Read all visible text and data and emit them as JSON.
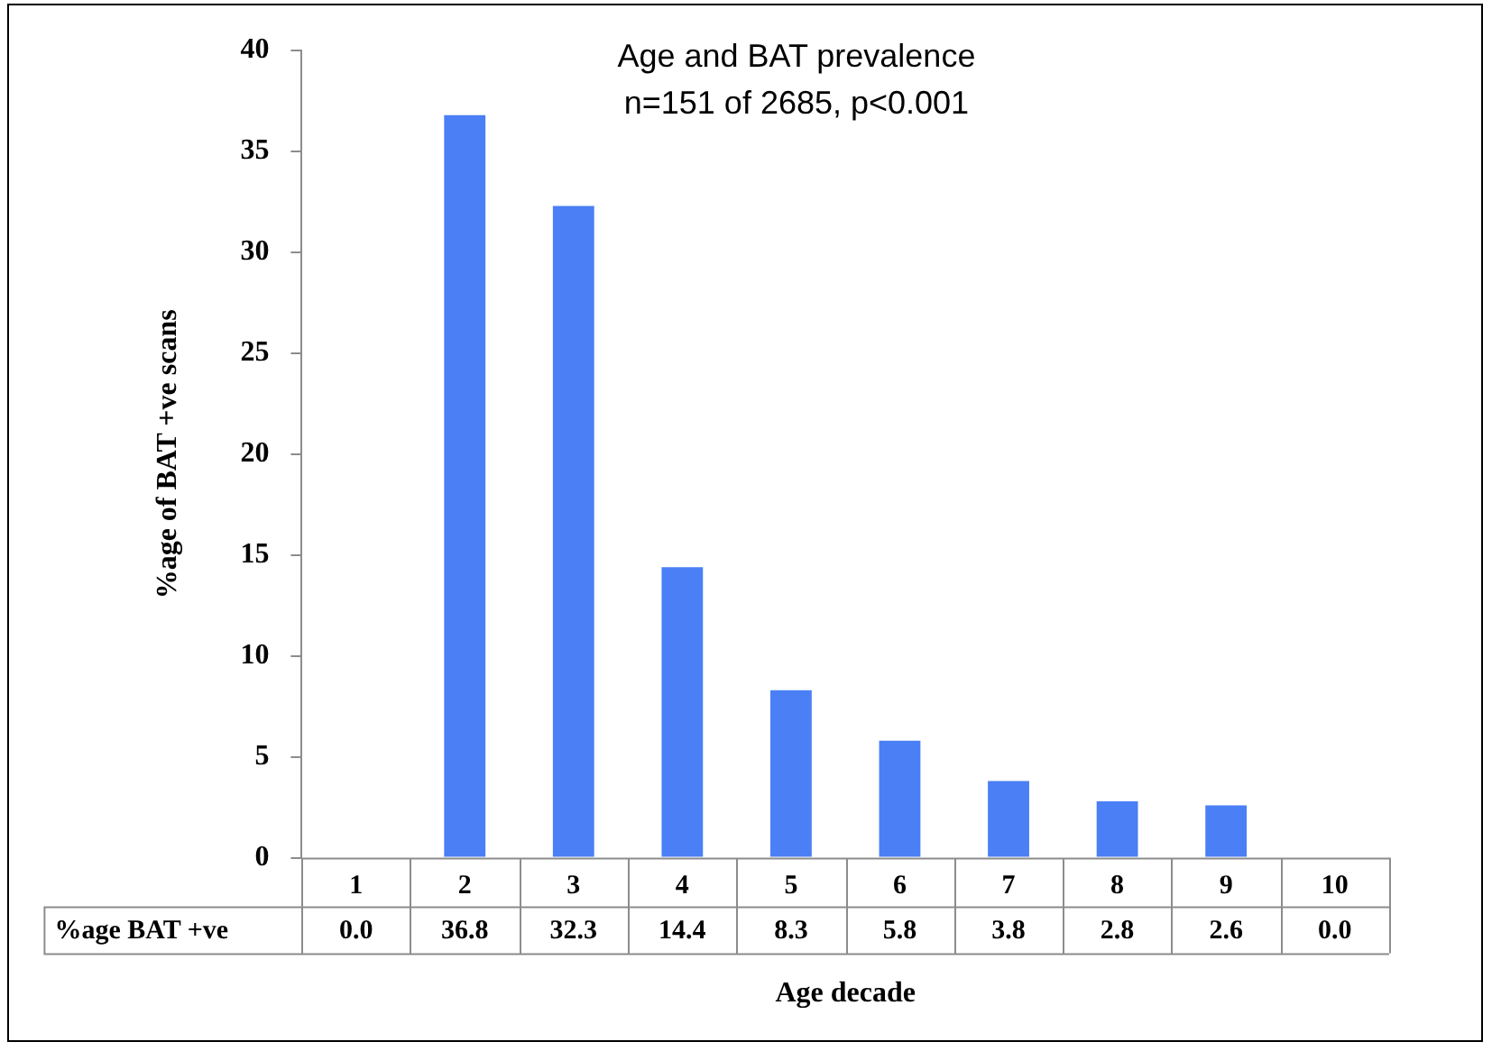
{
  "chart_data": {
    "type": "bar",
    "title": "Age and BAT prevalence",
    "subtitle": "n=151 of 2685, p<0.001",
    "xlabel": "Age decade",
    "ylabel": "%age of BAT +ve scans",
    "categories": [
      "1",
      "2",
      "3",
      "4",
      "5",
      "6",
      "7",
      "8",
      "9",
      "10"
    ],
    "series": [
      {
        "name": "%age BAT +ve",
        "color": "#4a7ff5",
        "values": [
          0.0,
          36.8,
          32.3,
          14.4,
          8.3,
          5.8,
          3.8,
          2.8,
          2.6,
          0.0
        ],
        "value_labels": [
          "0.0",
          "36.8",
          "32.3",
          "14.4",
          "8.3",
          "5.8",
          "3.8",
          "2.8",
          "2.6",
          "0.0"
        ]
      }
    ],
    "ylim": [
      0,
      40
    ],
    "yticks": [
      0,
      5,
      10,
      15,
      20,
      25,
      30,
      35,
      40
    ],
    "grid": false,
    "legend": false
  }
}
